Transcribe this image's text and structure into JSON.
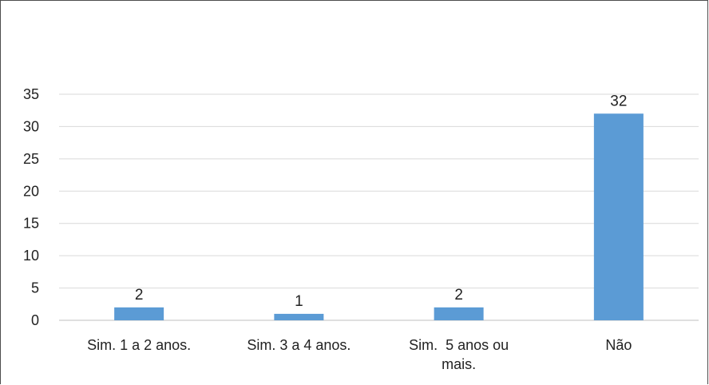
{
  "chart_data": {
    "type": "bar",
    "categories": [
      [
        "Sim. 1 a 2 anos."
      ],
      [
        "Sim. 3 a 4 anos."
      ],
      [
        "Sim.  5 anos ou",
        "mais."
      ],
      [
        "Não"
      ]
    ],
    "values": [
      2,
      1,
      2,
      32
    ],
    "data_labels": [
      "2",
      "1",
      "2",
      "32"
    ],
    "yticks": [
      "0",
      "5",
      "10",
      "15",
      "20",
      "25",
      "30",
      "35"
    ],
    "ylim": [
      0,
      35
    ],
    "grid": true,
    "bar_color": "#5b9bd5",
    "grid_color": "#d9d9d9",
    "axis_color": "#bfbfbf"
  }
}
